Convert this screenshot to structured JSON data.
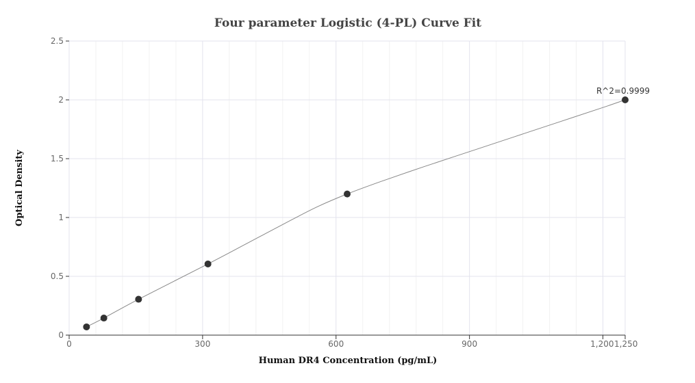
{
  "chart_data": {
    "type": "scatter",
    "title": "Four parameter Logistic (4-PL) Curve Fit",
    "xlabel": "Human DR4 Concentration (pg/mL)",
    "ylabel": "Optical Density",
    "xlim": [
      0,
      1250
    ],
    "ylim": [
      0,
      2.5
    ],
    "x_ticks": [
      0,
      300,
      600,
      900,
      1200,
      1250
    ],
    "x_tick_labels": [
      "0",
      "300",
      "600",
      "900",
      "1,200",
      "1,250"
    ],
    "y_ticks": [
      0,
      0.5,
      1,
      1.5,
      2,
      2.5
    ],
    "y_tick_labels": [
      "0",
      "0.5",
      "1",
      "1.5",
      "2",
      "2.5"
    ],
    "grid": true,
    "series": [
      {
        "points": [
          {
            "x": 39,
            "y": 0.07
          },
          {
            "x": 78,
            "y": 0.145
          },
          {
            "x": 156,
            "y": 0.305
          },
          {
            "x": 312,
            "y": 0.605
          },
          {
            "x": 625,
            "y": 1.2
          },
          {
            "x": 1250,
            "y": 2.0
          }
        ],
        "marker_color": "#333333"
      }
    ],
    "fit_curve": {
      "x": [
        39,
        78,
        156,
        312,
        400,
        500,
        560,
        625,
        700,
        800,
        900,
        1000,
        1100,
        1200,
        1250
      ],
      "y": [
        0.07,
        0.145,
        0.305,
        0.605,
        0.78,
        0.98,
        1.095,
        1.2,
        1.305,
        1.435,
        1.56,
        1.685,
        1.81,
        1.935,
        2.0
      ],
      "color": "#888888"
    },
    "annotation": {
      "text": "R^2=0.9999",
      "x": 1250,
      "y": 2.0
    }
  }
}
